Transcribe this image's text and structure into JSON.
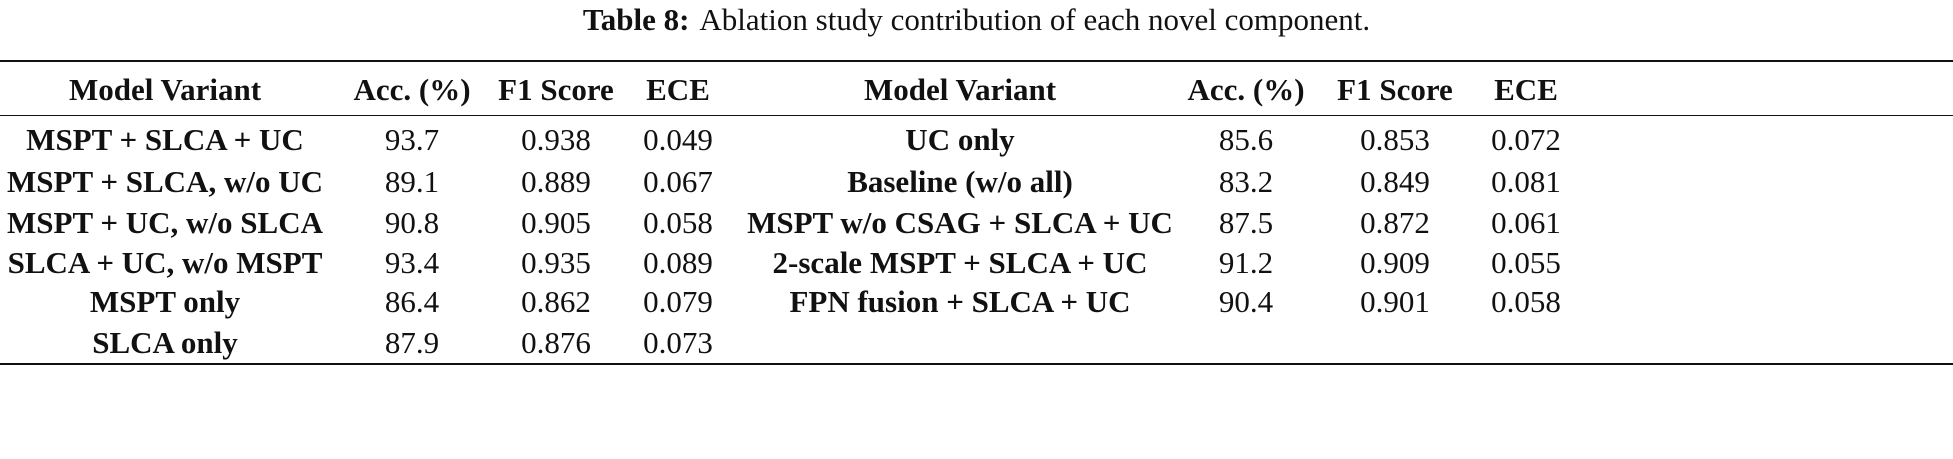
{
  "header": {
    "caption_label": "Table 8:",
    "caption_text": "Ablation study contribution of each novel component."
  },
  "table": {
    "columns": [
      "Model Variant",
      "Acc. (%)",
      "F1 Score",
      "ECE",
      "Model Variant",
      "Acc. (%)",
      "F1 Score",
      "ECE"
    ],
    "left_rows": [
      [
        "MSPT + SLCA + UC",
        "93.7",
        "0.938",
        "0.049"
      ],
      [
        "MSPT + SLCA, w/o UC",
        "89.1",
        "0.889",
        "0.067"
      ],
      [
        "MSPT + UC, w/o SLCA",
        "90.8",
        "0.905",
        "0.058"
      ],
      [
        "SLCA + UC, w/o MSPT",
        "93.4",
        "0.935",
        "0.089"
      ],
      [
        "MSPT only",
        "86.4",
        "0.862",
        "0.079"
      ],
      [
        "SLCA only",
        "87.9",
        "0.876",
        "0.073"
      ]
    ],
    "right_rows": [
      [
        "UC only",
        "85.6",
        "0.853",
        "0.072"
      ],
      [
        "Baseline (w/o all)",
        "83.2",
        "0.849",
        "0.081"
      ],
      [
        "MSPT w/o CSAG + SLCA + UC",
        "87.5",
        "0.872",
        "0.061"
      ],
      [
        "2-scale MSPT + SLCA + UC",
        "91.2",
        "0.909",
        "0.055"
      ],
      [
        "FPN fusion + SLCA + UC",
        "90.4",
        "0.901",
        "0.058"
      ]
    ]
  }
}
